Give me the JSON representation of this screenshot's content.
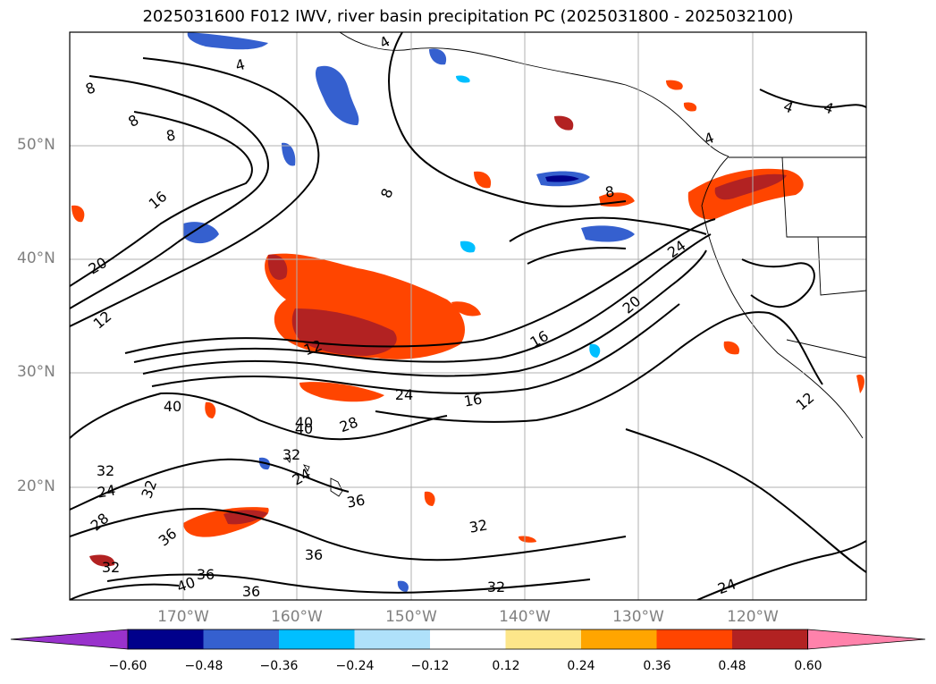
{
  "title": "2025031600 F012 IWV, river basin precipitation PC (2025031800 - 2025032100)",
  "map": {
    "lat_labels": [
      "50°N",
      "40°N",
      "30°N",
      "20°N"
    ],
    "lon_labels": [
      "170°W",
      "160°W",
      "150°W",
      "140°W",
      "130°W",
      "120°W"
    ],
    "grid": true,
    "contour_labels": [
      "4",
      "4",
      "4",
      "4",
      "4",
      "8",
      "8",
      "8",
      "8",
      "8",
      "12",
      "12",
      "12",
      "16",
      "16",
      "16",
      "20",
      "20",
      "24",
      "24",
      "24",
      "24",
      "24",
      "28",
      "28",
      "32",
      "32",
      "32",
      "32",
      "32",
      "32",
      "36",
      "36",
      "36",
      "36",
      "36",
      "40",
      "40",
      "40",
      "40"
    ]
  },
  "colorbar": {
    "tick_labels": [
      "−0.60",
      "−0.48",
      "−0.36",
      "−0.24",
      "−0.12",
      "0.12",
      "0.24",
      "0.36",
      "0.48",
      "0.60"
    ],
    "colors": [
      "#9932cc",
      "#00008b",
      "#3560cf",
      "#00bfff",
      "#afe1fa",
      "#ffffff",
      "#fde68a",
      "#ffa500",
      "#ff4500",
      "#b22222",
      "#ff82ab"
    ],
    "extend": "both"
  }
}
